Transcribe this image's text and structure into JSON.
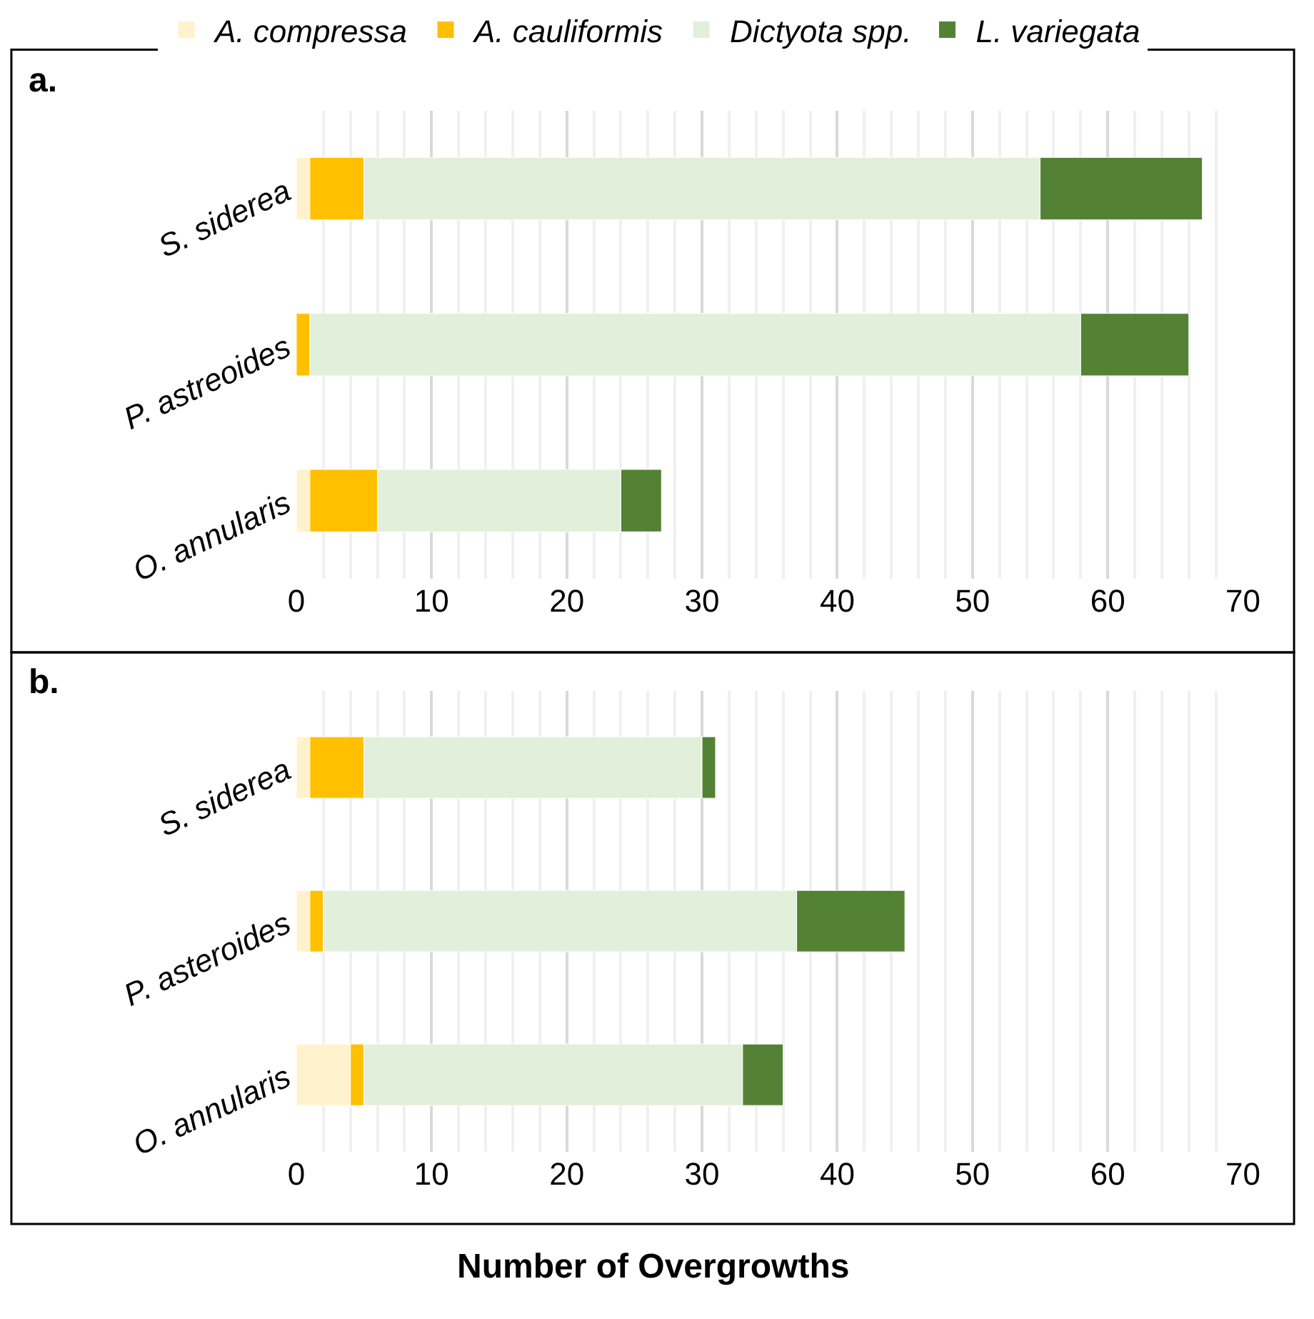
{
  "chart_data": [
    {
      "type": "bar",
      "stacked": true,
      "orientation": "horizontal",
      "categories": [
        "S. siderea",
        "P. astreoides",
        "O. annularis"
      ],
      "series": [
        {
          "name": "A. compressa",
          "color": "#fff2cc",
          "values": [
            1,
            0,
            1
          ]
        },
        {
          "name": "A. cauliformis",
          "color": "#ffc000",
          "values": [
            4,
            1,
            5
          ]
        },
        {
          "name": "Dictyota spp.",
          "color": "#e2efda",
          "values": [
            50,
            57,
            18
          ]
        },
        {
          "name": "L. variegata",
          "color": "#548235",
          "values": [
            12,
            8,
            3
          ]
        }
      ],
      "xlim": [
        0,
        70
      ],
      "xticks": [
        0,
        10,
        20,
        30,
        40,
        50,
        60,
        70
      ],
      "grid": "x",
      "legend": "top",
      "annotations": [
        "a."
      ]
    },
    {
      "type": "bar",
      "stacked": true,
      "orientation": "horizontal",
      "categories": [
        "S. siderea",
        "P. asteroides",
        "O. annularis"
      ],
      "series": [
        {
          "color": "#fff2cc",
          "values": [
            1,
            1,
            4
          ]
        },
        {
          "color": "#ffc000",
          "values": [
            4,
            1,
            1
          ]
        },
        {
          "color": "#e2efda",
          "values": [
            25,
            35,
            28
          ]
        },
        {
          "color": "#548235",
          "values": [
            1,
            8,
            3
          ]
        }
      ],
      "xlim": [
        0,
        70
      ],
      "xticks": [
        0,
        10,
        20,
        30,
        40,
        50,
        60,
        70
      ],
      "grid": "x",
      "xlabel": "Number of Overgrowths",
      "annotations": [
        "b."
      ]
    }
  ]
}
